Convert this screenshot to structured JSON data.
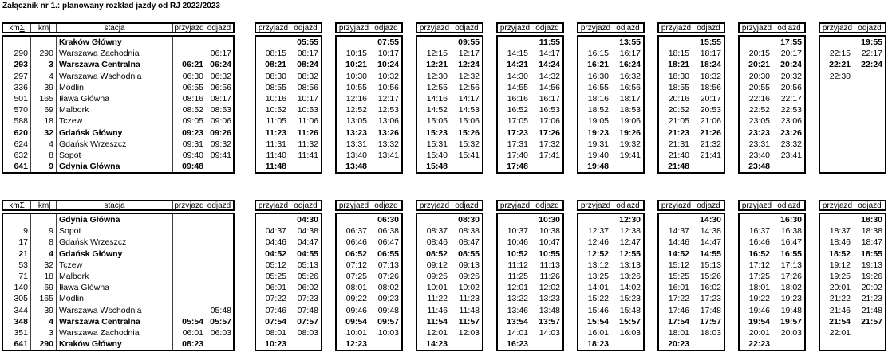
{
  "title": "Załącznik nr 1.: planowany rozkład jazdy od RJ 2022/2023",
  "column_headers": {
    "km_total": "km",
    "km_total_symbol": "Σ",
    "km_between": "|km|",
    "station": "stacja",
    "arrival": "przyjazd",
    "departure": "odjazd"
  },
  "sections": [
    {
      "id": "outbound",
      "stations": [
        {
          "km_total": "",
          "km": "",
          "name": "Kraków Główny",
          "bold": true
        },
        {
          "km_total": "290",
          "km": "290",
          "name": "Warszawa Zachodnia",
          "bold": false
        },
        {
          "km_total": "293",
          "km": "3",
          "name": "Warszawa Centralna",
          "bold": true
        },
        {
          "km_total": "297",
          "km": "4",
          "name": "Warszawa Wschodnia",
          "bold": false
        },
        {
          "km_total": "336",
          "km": "39",
          "name": "Modlin",
          "bold": false
        },
        {
          "km_total": "501",
          "km": "165",
          "name": "Iława Główna",
          "bold": false
        },
        {
          "km_total": "570",
          "km": "69",
          "name": "Malbork",
          "bold": false
        },
        {
          "km_total": "588",
          "km": "18",
          "name": "Tczew",
          "bold": false
        },
        {
          "km_total": "620",
          "km": "32",
          "name": "Gdańsk Główny",
          "bold": true
        },
        {
          "km_total": "624",
          "km": "4",
          "name": "Gdańsk Wrzeszcz",
          "bold": false
        },
        {
          "km_total": "632",
          "km": "8",
          "name": "Sopot",
          "bold": false
        },
        {
          "km_total": "641",
          "km": "9",
          "name": "Gdynia Główna",
          "bold": true
        }
      ],
      "left_train": [
        [
          "",
          ""
        ],
        [
          "",
          "06:17"
        ],
        [
          "06:21",
          "06:24"
        ],
        [
          "06:30",
          "06:32"
        ],
        [
          "06:55",
          "06:56"
        ],
        [
          "08:16",
          "08:17"
        ],
        [
          "08:52",
          "08:53"
        ],
        [
          "09:05",
          "09:06"
        ],
        [
          "09:23",
          "09:26"
        ],
        [
          "09:31",
          "09:32"
        ],
        [
          "09:40",
          "09:41"
        ],
        [
          "09:48",
          ""
        ]
      ],
      "train_blocks": [
        [
          [
            "",
            "05:55"
          ],
          [
            "08:15",
            "08:17"
          ],
          [
            "08:21",
            "08:24"
          ],
          [
            "08:30",
            "08:32"
          ],
          [
            "08:55",
            "08:56"
          ],
          [
            "10:16",
            "10:17"
          ],
          [
            "10:52",
            "10:53"
          ],
          [
            "11:05",
            "11:06"
          ],
          [
            "11:23",
            "11:26"
          ],
          [
            "11:31",
            "11:32"
          ],
          [
            "11:40",
            "11:41"
          ],
          [
            "11:48",
            ""
          ]
        ],
        [
          [
            "",
            "07:55"
          ],
          [
            "10:15",
            "10:17"
          ],
          [
            "10:21",
            "10:24"
          ],
          [
            "10:30",
            "10:32"
          ],
          [
            "10:55",
            "10:56"
          ],
          [
            "12:16",
            "12:17"
          ],
          [
            "12:52",
            "12:53"
          ],
          [
            "13:05",
            "13:06"
          ],
          [
            "13:23",
            "13:26"
          ],
          [
            "13:31",
            "13:32"
          ],
          [
            "13:40",
            "13:41"
          ],
          [
            "13:48",
            ""
          ]
        ],
        [
          [
            "",
            "09:55"
          ],
          [
            "12:15",
            "12:17"
          ],
          [
            "12:21",
            "12:24"
          ],
          [
            "12:30",
            "12:32"
          ],
          [
            "12:55",
            "12:56"
          ],
          [
            "14:16",
            "14:17"
          ],
          [
            "14:52",
            "14:53"
          ],
          [
            "15:05",
            "15:06"
          ],
          [
            "15:23",
            "15:26"
          ],
          [
            "15:31",
            "15:32"
          ],
          [
            "15:40",
            "15:41"
          ],
          [
            "15:48",
            ""
          ]
        ],
        [
          [
            "",
            "11:55"
          ],
          [
            "14:15",
            "14:17"
          ],
          [
            "14:21",
            "14:24"
          ],
          [
            "14:30",
            "14:32"
          ],
          [
            "14:55",
            "14:56"
          ],
          [
            "16:16",
            "16:17"
          ],
          [
            "16:52",
            "16:53"
          ],
          [
            "17:05",
            "17:06"
          ],
          [
            "17:23",
            "17:26"
          ],
          [
            "17:31",
            "17:32"
          ],
          [
            "17:40",
            "17:41"
          ],
          [
            "17:48",
            ""
          ]
        ],
        [
          [
            "",
            "13:55"
          ],
          [
            "16:15",
            "16:17"
          ],
          [
            "16:21",
            "16:24"
          ],
          [
            "16:30",
            "16:32"
          ],
          [
            "16:55",
            "16:56"
          ],
          [
            "18:16",
            "18:17"
          ],
          [
            "18:52",
            "18:53"
          ],
          [
            "19:05",
            "19:06"
          ],
          [
            "19:23",
            "19:26"
          ],
          [
            "19:31",
            "19:32"
          ],
          [
            "19:40",
            "19:41"
          ],
          [
            "19:48",
            ""
          ]
        ],
        [
          [
            "",
            "15:55"
          ],
          [
            "18:15",
            "18:17"
          ],
          [
            "18:21",
            "18:24"
          ],
          [
            "18:30",
            "18:32"
          ],
          [
            "18:55",
            "18:56"
          ],
          [
            "20:16",
            "20:17"
          ],
          [
            "20:52",
            "20:53"
          ],
          [
            "21:05",
            "21:06"
          ],
          [
            "21:23",
            "21:26"
          ],
          [
            "21:31",
            "21:32"
          ],
          [
            "21:40",
            "21:41"
          ],
          [
            "21:48",
            ""
          ]
        ],
        [
          [
            "",
            "17:55"
          ],
          [
            "20:15",
            "20:17"
          ],
          [
            "20:21",
            "20:24"
          ],
          [
            "20:30",
            "20:32"
          ],
          [
            "20:55",
            "20:56"
          ],
          [
            "22:16",
            "22:17"
          ],
          [
            "22:52",
            "22:53"
          ],
          [
            "23:05",
            "23:06"
          ],
          [
            "23:23",
            "23:26"
          ],
          [
            "23:31",
            "23:32"
          ],
          [
            "23:40",
            "23:41"
          ],
          [
            "23:48",
            ""
          ]
        ],
        [
          [
            "",
            "19:55"
          ],
          [
            "22:15",
            "22:17"
          ],
          [
            "22:21",
            "22:24"
          ],
          [
            "22:30",
            ""
          ],
          [
            "",
            ""
          ],
          [
            "",
            ""
          ],
          [
            "",
            ""
          ],
          [
            "",
            ""
          ],
          [
            "",
            ""
          ],
          [
            "",
            ""
          ],
          [
            "",
            ""
          ],
          [
            "",
            ""
          ]
        ]
      ]
    },
    {
      "id": "return",
      "stations": [
        {
          "km_total": "",
          "km": "",
          "name": "Gdynia Główna",
          "bold": true
        },
        {
          "km_total": "9",
          "km": "9",
          "name": "Sopot",
          "bold": false
        },
        {
          "km_total": "17",
          "km": "8",
          "name": "Gdańsk Wrzeszcz",
          "bold": false
        },
        {
          "km_total": "21",
          "km": "4",
          "name": "Gdańsk Główny",
          "bold": true
        },
        {
          "km_total": "53",
          "km": "32",
          "name": "Tczew",
          "bold": false
        },
        {
          "km_total": "71",
          "km": "18",
          "name": "Malbork",
          "bold": false
        },
        {
          "km_total": "140",
          "km": "69",
          "name": "Iława Główna",
          "bold": false
        },
        {
          "km_total": "305",
          "km": "165",
          "name": "Modlin",
          "bold": false
        },
        {
          "km_total": "344",
          "km": "39",
          "name": "Warszawa Wschodnia",
          "bold": false
        },
        {
          "km_total": "348",
          "km": "4",
          "name": "Warszawa Centralna",
          "bold": true
        },
        {
          "km_total": "351",
          "km": "3",
          "name": "Warszawa Zachodnia",
          "bold": false
        },
        {
          "km_total": "641",
          "km": "290",
          "name": "Kraków Główny",
          "bold": true
        }
      ],
      "left_train": [
        [
          "",
          ""
        ],
        [
          "",
          ""
        ],
        [
          "",
          ""
        ],
        [
          "",
          ""
        ],
        [
          "",
          ""
        ],
        [
          "",
          ""
        ],
        [
          "",
          ""
        ],
        [
          "",
          ""
        ],
        [
          "",
          "05:48"
        ],
        [
          "05:54",
          "05:57"
        ],
        [
          "06:01",
          "06:03"
        ],
        [
          "08:23",
          ""
        ]
      ],
      "train_blocks": [
        [
          [
            "",
            "04:30"
          ],
          [
            "04:37",
            "04:38"
          ],
          [
            "04:46",
            "04:47"
          ],
          [
            "04:52",
            "04:55"
          ],
          [
            "05:12",
            "05:13"
          ],
          [
            "05:25",
            "05:26"
          ],
          [
            "06:01",
            "06:02"
          ],
          [
            "07:22",
            "07:23"
          ],
          [
            "07:46",
            "07:48"
          ],
          [
            "07:54",
            "07:57"
          ],
          [
            "08:01",
            "08:03"
          ],
          [
            "10:23",
            ""
          ]
        ],
        [
          [
            "",
            "06:30"
          ],
          [
            "06:37",
            "06:38"
          ],
          [
            "06:46",
            "06:47"
          ],
          [
            "06:52",
            "06:55"
          ],
          [
            "07:12",
            "07:13"
          ],
          [
            "07:25",
            "07:26"
          ],
          [
            "08:01",
            "08:02"
          ],
          [
            "09:22",
            "09:23"
          ],
          [
            "09:46",
            "09:48"
          ],
          [
            "09:54",
            "09:57"
          ],
          [
            "10:01",
            "10:03"
          ],
          [
            "12:23",
            ""
          ]
        ],
        [
          [
            "",
            "08:30"
          ],
          [
            "08:37",
            "08:38"
          ],
          [
            "08:46",
            "08:47"
          ],
          [
            "08:52",
            "08:55"
          ],
          [
            "09:12",
            "09:13"
          ],
          [
            "09:25",
            "09:26"
          ],
          [
            "10:01",
            "10:02"
          ],
          [
            "11:22",
            "11:23"
          ],
          [
            "11:46",
            "11:48"
          ],
          [
            "11:54",
            "11:57"
          ],
          [
            "12:01",
            "12:03"
          ],
          [
            "14:23",
            ""
          ]
        ],
        [
          [
            "",
            "10:30"
          ],
          [
            "10:37",
            "10:38"
          ],
          [
            "10:46",
            "10:47"
          ],
          [
            "10:52",
            "10:55"
          ],
          [
            "11:12",
            "11:13"
          ],
          [
            "11:25",
            "11:26"
          ],
          [
            "12:01",
            "12:02"
          ],
          [
            "13:22",
            "13:23"
          ],
          [
            "13:46",
            "13:48"
          ],
          [
            "13:54",
            "13:57"
          ],
          [
            "14:01",
            "14:03"
          ],
          [
            "16:23",
            ""
          ]
        ],
        [
          [
            "",
            "12:30"
          ],
          [
            "12:37",
            "12:38"
          ],
          [
            "12:46",
            "12:47"
          ],
          [
            "12:52",
            "12:55"
          ],
          [
            "13:12",
            "13:13"
          ],
          [
            "13:25",
            "13:26"
          ],
          [
            "14:01",
            "14:02"
          ],
          [
            "15:22",
            "15:23"
          ],
          [
            "15:46",
            "15:48"
          ],
          [
            "15:54",
            "15:57"
          ],
          [
            "16:01",
            "16:03"
          ],
          [
            "18:23",
            ""
          ]
        ],
        [
          [
            "",
            "14:30"
          ],
          [
            "14:37",
            "14:38"
          ],
          [
            "14:46",
            "14:47"
          ],
          [
            "14:52",
            "14:55"
          ],
          [
            "15:12",
            "15:13"
          ],
          [
            "15:25",
            "15:26"
          ],
          [
            "16:01",
            "16:02"
          ],
          [
            "17:22",
            "17:23"
          ],
          [
            "17:46",
            "17:48"
          ],
          [
            "17:54",
            "17:57"
          ],
          [
            "18:01",
            "18:03"
          ],
          [
            "20:23",
            ""
          ]
        ],
        [
          [
            "",
            "16:30"
          ],
          [
            "16:37",
            "16:38"
          ],
          [
            "16:46",
            "16:47"
          ],
          [
            "16:52",
            "16:55"
          ],
          [
            "17:12",
            "17:13"
          ],
          [
            "17:25",
            "17:26"
          ],
          [
            "18:01",
            "18:02"
          ],
          [
            "19:22",
            "19:23"
          ],
          [
            "19:46",
            "19:48"
          ],
          [
            "19:54",
            "19:57"
          ],
          [
            "20:01",
            "20:03"
          ],
          [
            "22:23",
            ""
          ]
        ],
        [
          [
            "",
            "18:30"
          ],
          [
            "18:37",
            "18:38"
          ],
          [
            "18:46",
            "18:47"
          ],
          [
            "18:52",
            "18:55"
          ],
          [
            "19:12",
            "19:13"
          ],
          [
            "19:25",
            "19:26"
          ],
          [
            "20:01",
            "20:02"
          ],
          [
            "21:22",
            "21:23"
          ],
          [
            "21:46",
            "21:48"
          ],
          [
            "21:54",
            "21:57"
          ],
          [
            "22:01",
            ""
          ],
          [
            "",
            ""
          ]
        ]
      ]
    }
  ]
}
